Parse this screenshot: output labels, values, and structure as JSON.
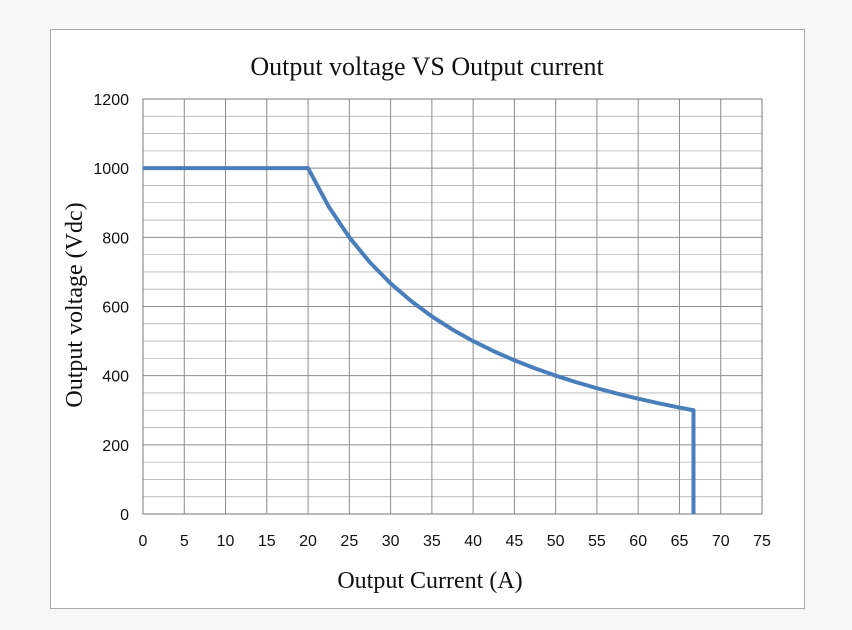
{
  "chart_data": {
    "type": "line",
    "title": "Output voltage VS Output current",
    "xlabel": "Output Current (A)",
    "ylabel": "Output voltage (Vdc)",
    "xlim": [
      0,
      75
    ],
    "ylim": [
      0,
      1200
    ],
    "x_ticks": [
      "0",
      "5",
      "10",
      "15",
      "20",
      "25",
      "30",
      "35",
      "40",
      "45",
      "50",
      "55",
      "60",
      "65",
      "70",
      "75"
    ],
    "y_ticks": [
      "0",
      "200",
      "400",
      "600",
      "800",
      "1000",
      "1200"
    ],
    "grid": true,
    "legend": "none",
    "series": [
      {
        "color": "#4a7ebb",
        "points": [
          [
            0,
            1000
          ],
          [
            20,
            1000
          ],
          [
            22.5,
            888.9
          ],
          [
            25,
            800
          ],
          [
            27.5,
            727.3
          ],
          [
            30,
            666.7
          ],
          [
            32.5,
            615.4
          ],
          [
            35,
            571.4
          ],
          [
            37.5,
            533.3
          ],
          [
            40,
            500
          ],
          [
            42.5,
            470.6
          ],
          [
            45,
            444.4
          ],
          [
            47.5,
            421.1
          ],
          [
            50,
            400
          ],
          [
            52.5,
            381
          ],
          [
            55,
            363.6
          ],
          [
            57.5,
            347.8
          ],
          [
            60,
            333.3
          ],
          [
            62.5,
            320
          ],
          [
            65,
            307.7
          ],
          [
            66.7,
            300
          ],
          [
            66.7,
            0
          ]
        ]
      }
    ]
  }
}
